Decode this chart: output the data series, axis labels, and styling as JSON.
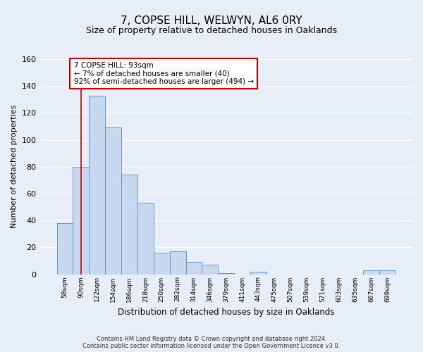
{
  "title": "7, COPSE HILL, WELWYN, AL6 0RY",
  "subtitle": "Size of property relative to detached houses in Oaklands",
  "xlabel": "Distribution of detached houses by size in Oaklands",
  "ylabel": "Number of detached properties",
  "bar_labels": [
    "58sqm",
    "90sqm",
    "122sqm",
    "154sqm",
    "186sqm",
    "218sqm",
    "250sqm",
    "282sqm",
    "314sqm",
    "346sqm",
    "379sqm",
    "411sqm",
    "443sqm",
    "475sqm",
    "507sqm",
    "539sqm",
    "571sqm",
    "603sqm",
    "635sqm",
    "667sqm",
    "699sqm"
  ],
  "bar_values": [
    38,
    80,
    133,
    109,
    74,
    53,
    16,
    17,
    9,
    7,
    1,
    0,
    2,
    0,
    0,
    0,
    0,
    0,
    0,
    3,
    3
  ],
  "bar_color": "#c8d8ee",
  "bar_edge_color": "#6699cc",
  "annotation_line1": "7 COPSE HILL: 93sqm",
  "annotation_line2": "← 7% of detached houses are smaller (40)",
  "annotation_line3": "92% of semi-detached houses are larger (494) →",
  "annotation_box_edgecolor": "#cc0000",
  "vline_x": 1,
  "vline_color": "#cc0000",
  "ylim": [
    0,
    160
  ],
  "yticks": [
    0,
    20,
    40,
    60,
    80,
    100,
    120,
    140,
    160
  ],
  "footer_line1": "Contains HM Land Registry data © Crown copyright and database right 2024.",
  "footer_line2": "Contains public sector information licensed under the Open Government Licence v3.0.",
  "bg_color": "#e8eef8",
  "plot_bg_color": "#e8eef8",
  "grid_color": "#ffffff",
  "title_fontsize": 11,
  "subtitle_fontsize": 9
}
